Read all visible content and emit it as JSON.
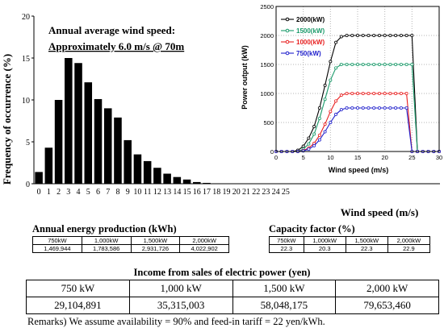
{
  "chart_data": [
    {
      "type": "bar",
      "ylabel": "Frequency of occurrence (%)",
      "xlabel": "Wind speed (m/s)",
      "ylim": [
        0,
        20
      ],
      "yticks": [
        0,
        5,
        10,
        15,
        20
      ],
      "categories": [
        "0",
        "1",
        "2",
        "3",
        "4",
        "5",
        "6",
        "7",
        "8",
        "9",
        "10",
        "11",
        "12",
        "13",
        "14",
        "15",
        "16",
        "17",
        "18",
        "19",
        "20",
        "21",
        "22",
        "23",
        "24",
        "25"
      ],
      "values": [
        1.4,
        4.3,
        10.0,
        15.0,
        14.4,
        12.1,
        10.1,
        9.0,
        7.9,
        5.2,
        3.5,
        2.7,
        1.9,
        1.2,
        0.8,
        0.5,
        0.2,
        0.1,
        0.05,
        0.03,
        0.02,
        0.02,
        0.01,
        0.01,
        0.01,
        0
      ],
      "annotation": {
        "line1": "Annual average wind speed:",
        "line2": "Approximately 6.0 m/s @ 70m"
      }
    },
    {
      "type": "line",
      "ylabel": "Power output (kW)",
      "xlabel": "Wind speed (m/s)",
      "xlim": [
        0,
        30
      ],
      "ylim": [
        0,
        2500
      ],
      "xticks": [
        0,
        5,
        10,
        15,
        20,
        25,
        30
      ],
      "yticks": [
        0,
        500,
        1000,
        1500,
        2000,
        2500
      ],
      "x": [
        0,
        1,
        2,
        3,
        4,
        5,
        6,
        7,
        8,
        9,
        10,
        11,
        12,
        13,
        14,
        15,
        16,
        17,
        18,
        19,
        20,
        21,
        22,
        23,
        24,
        25,
        26,
        27,
        28,
        29,
        30
      ],
      "series": [
        {
          "name": "2000(kW)",
          "color": "#000000",
          "values": [
            0,
            0,
            0,
            0,
            20,
            90,
            230,
            430,
            750,
            1140,
            1550,
            1880,
            1980,
            2000,
            2000,
            2000,
            2000,
            2000,
            2000,
            2000,
            2000,
            2000,
            2000,
            2000,
            2000,
            2000,
            0,
            0,
            0,
            0,
            0
          ]
        },
        {
          "name": "1500(kW)",
          "color": "#1a9a6a",
          "values": [
            0,
            0,
            0,
            0,
            0,
            40,
            130,
            300,
            570,
            900,
            1230,
            1440,
            1500,
            1500,
            1500,
            1500,
            1500,
            1500,
            1500,
            1500,
            1500,
            1500,
            1500,
            1500,
            1500,
            1500,
            0,
            0,
            0,
            0,
            0
          ]
        },
        {
          "name": "1000(kW)",
          "color": "#e82020",
          "values": [
            0,
            0,
            0,
            0,
            0,
            15,
            60,
            140,
            280,
            470,
            690,
            870,
            970,
            1000,
            1000,
            1000,
            1000,
            1000,
            1000,
            1000,
            1000,
            1000,
            1000,
            1000,
            1000,
            0,
            0,
            0,
            0,
            0,
            0
          ]
        },
        {
          "name": "750(kW)",
          "color": "#2020cc",
          "values": [
            0,
            0,
            0,
            0,
            0,
            10,
            40,
            100,
            200,
            340,
            500,
            640,
            720,
            750,
            750,
            750,
            750,
            750,
            750,
            750,
            750,
            750,
            750,
            750,
            750,
            0,
            0,
            0,
            0,
            0,
            0
          ]
        }
      ]
    }
  ],
  "energy": {
    "title": "Annual energy production (kWh)",
    "headers": [
      "750kW",
      "1,000kW",
      "1,500kW",
      "2,000kW"
    ],
    "values": [
      "1,469,944",
      "1,783,586",
      "2,931,726",
      "4,022,902"
    ]
  },
  "capacity": {
    "title": "Capacity factor (%)",
    "headers": [
      "750kW",
      "1,000kW",
      "1,500kW",
      "2,000kW"
    ],
    "values": [
      "22.3",
      "20.3",
      "22.3",
      "22.9"
    ]
  },
  "income": {
    "title": "Income from sales of electric power (yen)",
    "headers": [
      "750 kW",
      "1,000 kW",
      "1,500 kW",
      "2,000 kW"
    ],
    "values": [
      "29,104,891",
      "35,315,003",
      "58,048,175",
      "79,653,460"
    ]
  },
  "remarks": "Remarks) We assume availability = 90% and feed-in tariff = 22 yen/kWh."
}
